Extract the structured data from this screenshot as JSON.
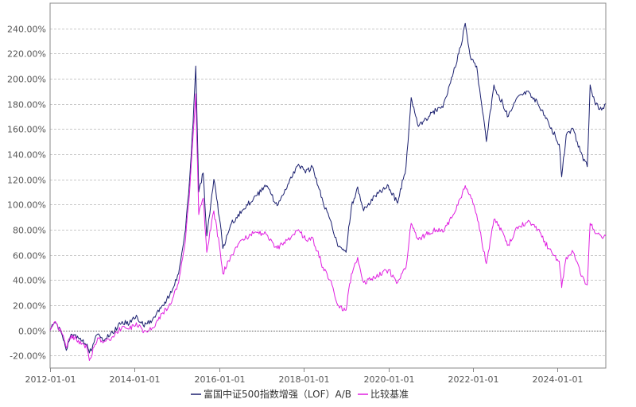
{
  "chart_data": {
    "type": "line",
    "x_type": "date",
    "xlim": [
      "2012-01-01",
      "2025-02-20"
    ],
    "ylim": [
      -0.3,
      2.6
    ],
    "y_ticks": [
      -0.2,
      0.0,
      0.2,
      0.4,
      0.6,
      0.8,
      1.0,
      1.2,
      1.4,
      1.6,
      1.8,
      2.0,
      2.2,
      2.4
    ],
    "y_tick_labels": [
      "-20.00%",
      "0.00%",
      "20.00%",
      "40.00%",
      "60.00%",
      "80.00%",
      "100.00%",
      "120.00%",
      "140.00%",
      "160.00%",
      "180.00%",
      "200.00%",
      "220.00%",
      "240.00%"
    ],
    "x_ticks": [
      "2012-01-01",
      "2014-01-01",
      "2016-01-01",
      "2018-01-01",
      "2020-01-01",
      "2022-01-01",
      "2024-01-01"
    ],
    "grid": true,
    "legend_position": "bottom",
    "series": [
      {
        "name": "富国中证500指数增强（LOF）A/B",
        "color": "#1a1f6e",
        "points": [
          [
            "2012-01-01",
            0.0
          ],
          [
            "2012-02-15",
            0.06
          ],
          [
            "2012-04-15",
            -0.04
          ],
          [
            "2012-05-20",
            -0.16
          ],
          [
            "2012-07-01",
            -0.03
          ],
          [
            "2012-09-01",
            -0.06
          ],
          [
            "2012-11-15",
            -0.11
          ],
          [
            "2012-12-05",
            -0.18
          ],
          [
            "2013-02-15",
            -0.03
          ],
          [
            "2013-04-01",
            -0.08
          ],
          [
            "2013-06-25",
            -0.02
          ],
          [
            "2013-09-15",
            0.07
          ],
          [
            "2013-11-15",
            0.05
          ],
          [
            "2014-01-15",
            0.12
          ],
          [
            "2014-03-15",
            0.04
          ],
          [
            "2014-06-01",
            0.08
          ],
          [
            "2014-09-01",
            0.2
          ],
          [
            "2014-11-15",
            0.3
          ],
          [
            "2015-01-15",
            0.45
          ],
          [
            "2015-03-15",
            0.8
          ],
          [
            "2015-04-20",
            1.2
          ],
          [
            "2015-05-20",
            1.65
          ],
          [
            "2015-06-12",
            2.1
          ],
          [
            "2015-07-08",
            1.1
          ],
          [
            "2015-08-15",
            1.25
          ],
          [
            "2015-09-15",
            0.75
          ],
          [
            "2015-11-15",
            1.2
          ],
          [
            "2016-01-10",
            0.85
          ],
          [
            "2016-02-01",
            0.65
          ],
          [
            "2016-04-15",
            0.85
          ],
          [
            "2016-07-15",
            0.95
          ],
          [
            "2016-11-15",
            1.07
          ],
          [
            "2017-02-15",
            1.15
          ],
          [
            "2017-05-15",
            0.99
          ],
          [
            "2017-08-15",
            1.16
          ],
          [
            "2017-11-15",
            1.32
          ],
          [
            "2018-01-15",
            1.25
          ],
          [
            "2018-03-15",
            1.3
          ],
          [
            "2018-06-15",
            1.02
          ],
          [
            "2018-08-15",
            0.88
          ],
          [
            "2018-10-20",
            0.67
          ],
          [
            "2018-12-31",
            0.62
          ],
          [
            "2019-02-15",
            0.98
          ],
          [
            "2019-04-10",
            1.14
          ],
          [
            "2019-06-01",
            0.95
          ],
          [
            "2019-09-01",
            1.07
          ],
          [
            "2019-12-31",
            1.15
          ],
          [
            "2020-03-20",
            1.01
          ],
          [
            "2020-06-01",
            1.3
          ],
          [
            "2020-07-15",
            1.85
          ],
          [
            "2020-09-15",
            1.62
          ],
          [
            "2020-12-15",
            1.7
          ],
          [
            "2021-02-15",
            1.75
          ],
          [
            "2021-04-15",
            1.77
          ],
          [
            "2021-07-15",
            2.05
          ],
          [
            "2021-09-15",
            2.25
          ],
          [
            "2021-10-25",
            2.44
          ],
          [
            "2021-12-15",
            2.15
          ],
          [
            "2022-02-01",
            2.1
          ],
          [
            "2022-04-26",
            1.5
          ],
          [
            "2022-06-30",
            1.95
          ],
          [
            "2022-09-15",
            1.8
          ],
          [
            "2022-11-01",
            1.7
          ],
          [
            "2023-01-15",
            1.85
          ],
          [
            "2023-04-15",
            1.9
          ],
          [
            "2023-07-15",
            1.8
          ],
          [
            "2023-10-15",
            1.65
          ],
          [
            "2024-01-15",
            1.48
          ],
          [
            "2024-02-05",
            1.22
          ],
          [
            "2024-03-15",
            1.55
          ],
          [
            "2024-05-15",
            1.6
          ],
          [
            "2024-07-15",
            1.42
          ],
          [
            "2024-09-13",
            1.3
          ],
          [
            "2024-10-08",
            1.95
          ],
          [
            "2024-11-15",
            1.82
          ],
          [
            "2025-01-15",
            1.75
          ],
          [
            "2025-02-20",
            1.8
          ]
        ]
      },
      {
        "name": "比较基准",
        "color": "#e020e0",
        "points": [
          [
            "2012-01-01",
            0.0
          ],
          [
            "2012-02-15",
            0.07
          ],
          [
            "2012-04-15",
            -0.03
          ],
          [
            "2012-05-20",
            -0.14
          ],
          [
            "2012-07-01",
            -0.04
          ],
          [
            "2012-09-01",
            -0.08
          ],
          [
            "2012-11-15",
            -0.14
          ],
          [
            "2012-12-05",
            -0.24
          ],
          [
            "2013-02-15",
            -0.06
          ],
          [
            "2013-04-01",
            -0.1
          ],
          [
            "2013-06-25",
            -0.05
          ],
          [
            "2013-09-15",
            0.03
          ],
          [
            "2013-11-15",
            0.01
          ],
          [
            "2014-01-15",
            0.06
          ],
          [
            "2014-03-15",
            -0.02
          ],
          [
            "2014-06-01",
            0.02
          ],
          [
            "2014-09-01",
            0.14
          ],
          [
            "2014-11-15",
            0.22
          ],
          [
            "2015-01-15",
            0.38
          ],
          [
            "2015-03-15",
            0.72
          ],
          [
            "2015-04-20",
            1.1
          ],
          [
            "2015-05-20",
            1.55
          ],
          [
            "2015-06-12",
            1.88
          ],
          [
            "2015-07-08",
            0.92
          ],
          [
            "2015-08-15",
            1.05
          ],
          [
            "2015-09-15",
            0.62
          ],
          [
            "2015-11-15",
            0.95
          ],
          [
            "2016-01-10",
            0.62
          ],
          [
            "2016-02-01",
            0.45
          ],
          [
            "2016-04-15",
            0.6
          ],
          [
            "2016-07-15",
            0.72
          ],
          [
            "2016-11-15",
            0.78
          ],
          [
            "2017-02-15",
            0.76
          ],
          [
            "2017-05-15",
            0.65
          ],
          [
            "2017-08-15",
            0.72
          ],
          [
            "2017-11-15",
            0.8
          ],
          [
            "2018-01-15",
            0.72
          ],
          [
            "2018-03-15",
            0.74
          ],
          [
            "2018-06-15",
            0.5
          ],
          [
            "2018-08-15",
            0.4
          ],
          [
            "2018-10-20",
            0.2
          ],
          [
            "2018-12-31",
            0.16
          ],
          [
            "2019-02-15",
            0.45
          ],
          [
            "2019-04-10",
            0.58
          ],
          [
            "2019-06-01",
            0.38
          ],
          [
            "2019-09-01",
            0.42
          ],
          [
            "2019-12-31",
            0.48
          ],
          [
            "2020-03-20",
            0.38
          ],
          [
            "2020-06-01",
            0.5
          ],
          [
            "2020-07-15",
            0.85
          ],
          [
            "2020-09-15",
            0.72
          ],
          [
            "2020-12-15",
            0.78
          ],
          [
            "2021-02-15",
            0.8
          ],
          [
            "2021-04-15",
            0.78
          ],
          [
            "2021-07-15",
            0.92
          ],
          [
            "2021-09-15",
            1.05
          ],
          [
            "2021-10-25",
            1.15
          ],
          [
            "2021-12-15",
            1.05
          ],
          [
            "2022-02-01",
            0.92
          ],
          [
            "2022-04-26",
            0.53
          ],
          [
            "2022-06-30",
            0.88
          ],
          [
            "2022-09-15",
            0.78
          ],
          [
            "2022-11-01",
            0.68
          ],
          [
            "2023-01-15",
            0.82
          ],
          [
            "2023-04-15",
            0.86
          ],
          [
            "2023-07-15",
            0.8
          ],
          [
            "2023-10-15",
            0.65
          ],
          [
            "2024-01-15",
            0.55
          ],
          [
            "2024-02-05",
            0.34
          ],
          [
            "2024-03-15",
            0.58
          ],
          [
            "2024-05-15",
            0.62
          ],
          [
            "2024-07-15",
            0.45
          ],
          [
            "2024-09-13",
            0.36
          ],
          [
            "2024-10-08",
            0.85
          ],
          [
            "2024-11-15",
            0.78
          ],
          [
            "2025-01-15",
            0.74
          ],
          [
            "2025-02-20",
            0.75
          ]
        ]
      }
    ]
  }
}
